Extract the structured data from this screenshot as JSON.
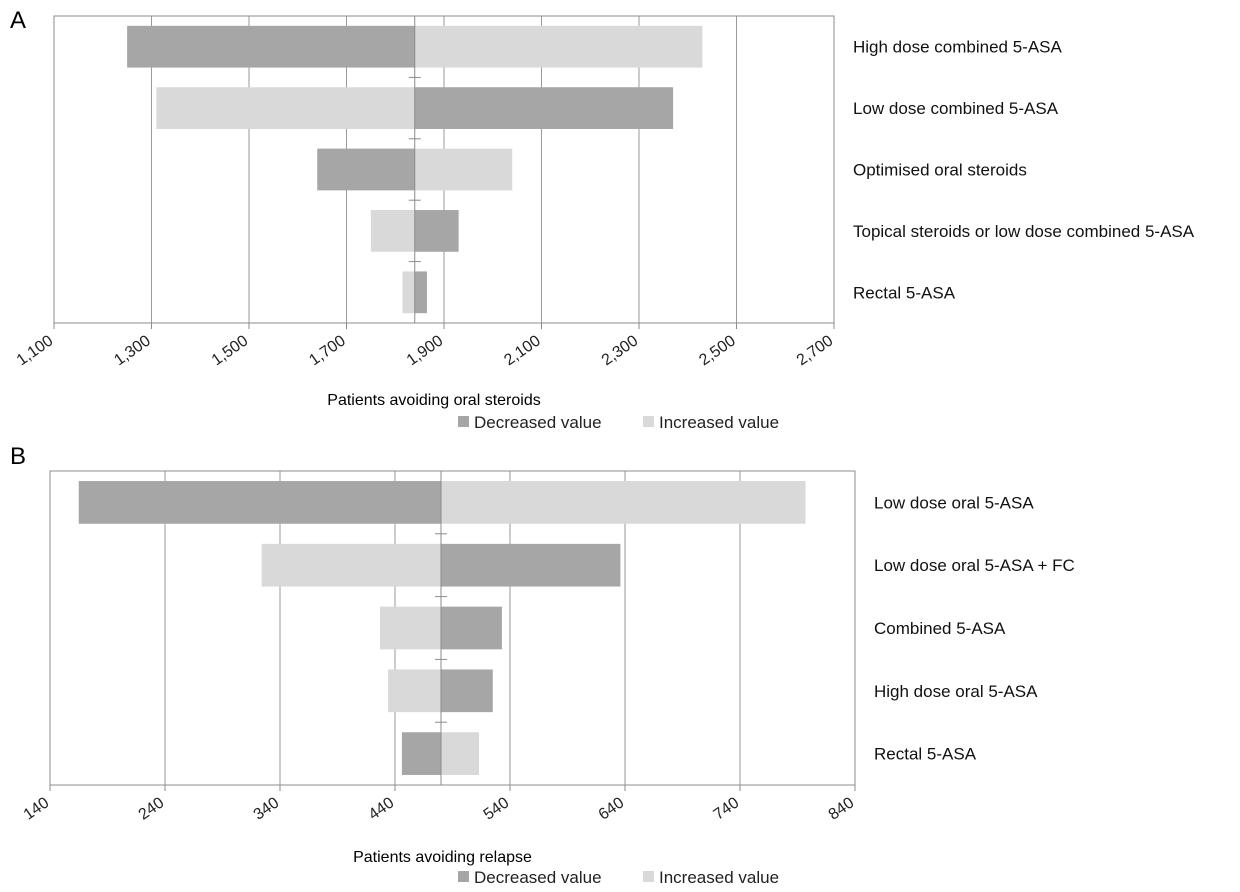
{
  "chart_data": [
    {
      "panel_label": "A",
      "type": "bar",
      "orientation": "horizontal",
      "subtype": "tornado",
      "base_value": 1840,
      "xlabel": "Patients avoiding oral steroids",
      "xlim": [
        1100,
        2700
      ],
      "xticks": [
        1100,
        1300,
        1500,
        1700,
        1900,
        2100,
        2300,
        2500,
        2700
      ],
      "xtick_labels": [
        "1,100",
        "1,300",
        "1,500",
        "1,700",
        "1,900",
        "2,100",
        "2,300",
        "2,500",
        "2,700"
      ],
      "categories": [
        "High dose combined 5-ASA",
        "Low dose combined 5-ASA",
        "Optimised oral steroids",
        "Topical steroids or low dose combined 5-ASA",
        "Rectal 5-ASA"
      ],
      "series": [
        {
          "name": "Decreased value",
          "color": "#a6a6a6",
          "values": [
            1250,
            2370,
            1640,
            1930,
            1865
          ]
        },
        {
          "name": "Increased value",
          "color": "#d9d9d9",
          "values": [
            2430,
            1310,
            2040,
            1750,
            1815
          ]
        }
      ],
      "grid": "vertical",
      "legend": "bottom"
    },
    {
      "panel_label": "B",
      "type": "bar",
      "orientation": "horizontal",
      "subtype": "tornado",
      "base_value": 480,
      "xlabel": "Patients avoiding relapse",
      "xlim": [
        140,
        840
      ],
      "xticks": [
        140,
        240,
        340,
        440,
        540,
        640,
        740,
        840
      ],
      "xtick_labels": [
        "140",
        "240",
        "340",
        "440",
        "540",
        "640",
        "740",
        "840"
      ],
      "categories": [
        "Low dose oral 5-ASA",
        "Low dose oral 5-ASA + FC",
        "Combined 5-ASA",
        "High dose oral 5-ASA",
        "Rectal 5-ASA"
      ],
      "series": [
        {
          "name": "Decreased value",
          "color": "#a6a6a6",
          "values": [
            165,
            636,
            533,
            525,
            446
          ]
        },
        {
          "name": "Increased value",
          "color": "#d9d9d9",
          "values": [
            797,
            324,
            427,
            434,
            513
          ]
        }
      ],
      "grid": "vertical",
      "legend": "bottom"
    }
  ]
}
